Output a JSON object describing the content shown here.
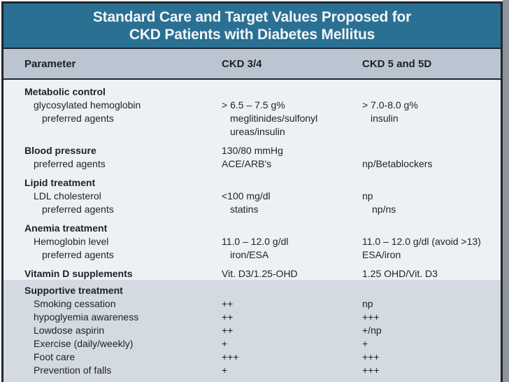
{
  "colors": {
    "title_bar_bg": "#2a7093",
    "title_text": "#f2f6f8",
    "header_row_bg": "#bac5d1",
    "body_bg": "#eef1f4",
    "supportive_bg": "#d4dae1",
    "frame_border": "#1f262d",
    "text": "#1d2026"
  },
  "title": {
    "line1": "Standard Care and Target Values Proposed for",
    "line2": "CKD Patients with Diabetes Mellitus"
  },
  "header": {
    "parameter": "Parameter",
    "ckd34": "CKD 3/4",
    "ckd5": "CKD 5 and 5D"
  },
  "groups": [
    {
      "heading": "Metabolic control",
      "ckd34": "",
      "ckd5": "",
      "rows": [
        {
          "label": "glycosylated hemoglobin",
          "ckd34": "> 6.5 – 7.5 g%",
          "ckd5": "> 7.0-8.0 g%"
        },
        {
          "label": "preferred agents",
          "ckd34": "meglitinides/sulfonyl\nureas/insulin",
          "ckd5": "insulin"
        }
      ]
    },
    {
      "heading": "Blood pressure",
      "ckd34": "130/80 mmHg",
      "ckd5": "",
      "rows": [
        {
          "label": "preferred agents",
          "ckd34": "ACE/ARB's",
          "ckd5": "np/Betablockers"
        }
      ]
    },
    {
      "heading": "Lipid treatment",
      "ckd34": "",
      "ckd5": "",
      "rows": [
        {
          "label": "LDL cholesterol",
          "ckd34": "<100 mg/dl",
          "ckd5": "np"
        },
        {
          "label": "preferred agents",
          "ckd34": "statins",
          "ckd5": "np/ns"
        }
      ]
    },
    {
      "heading": "Anemia treatment",
      "ckd34": "",
      "ckd5": "",
      "rows": [
        {
          "label": "Hemoglobin level",
          "ckd34": "11.0 – 12.0 g/dl",
          "ckd5": "11.0 – 12.0 g/dl (avoid >13)"
        },
        {
          "label": "preferred agents",
          "ckd34": "iron/ESA",
          "ckd5": "ESA/iron"
        }
      ]
    },
    {
      "heading": "Vitamin D supplements",
      "ckd34": "Vit. D3/1.25-OHD",
      "ckd5": "1.25 OHD/Vit. D3",
      "rows": []
    }
  ],
  "supportive": {
    "heading": "Supportive treatment",
    "rows": [
      {
        "label": "Smoking cessation",
        "ckd34": "++",
        "ckd5": "np"
      },
      {
        "label": "hypoglyemia awareness",
        "ckd34": "++",
        "ckd5": "+++"
      },
      {
        "label": "Lowdose aspirin",
        "ckd34": "++",
        "ckd5": "+/np"
      },
      {
        "label": "Exercise (daily/weekly)",
        "ckd34": "+",
        "ckd5": "+"
      },
      {
        "label": "Foot care",
        "ckd34": "+++",
        "ckd5": "+++"
      },
      {
        "label": "Prevention of falls",
        "ckd34": "+",
        "ckd5": "+++"
      }
    ]
  }
}
